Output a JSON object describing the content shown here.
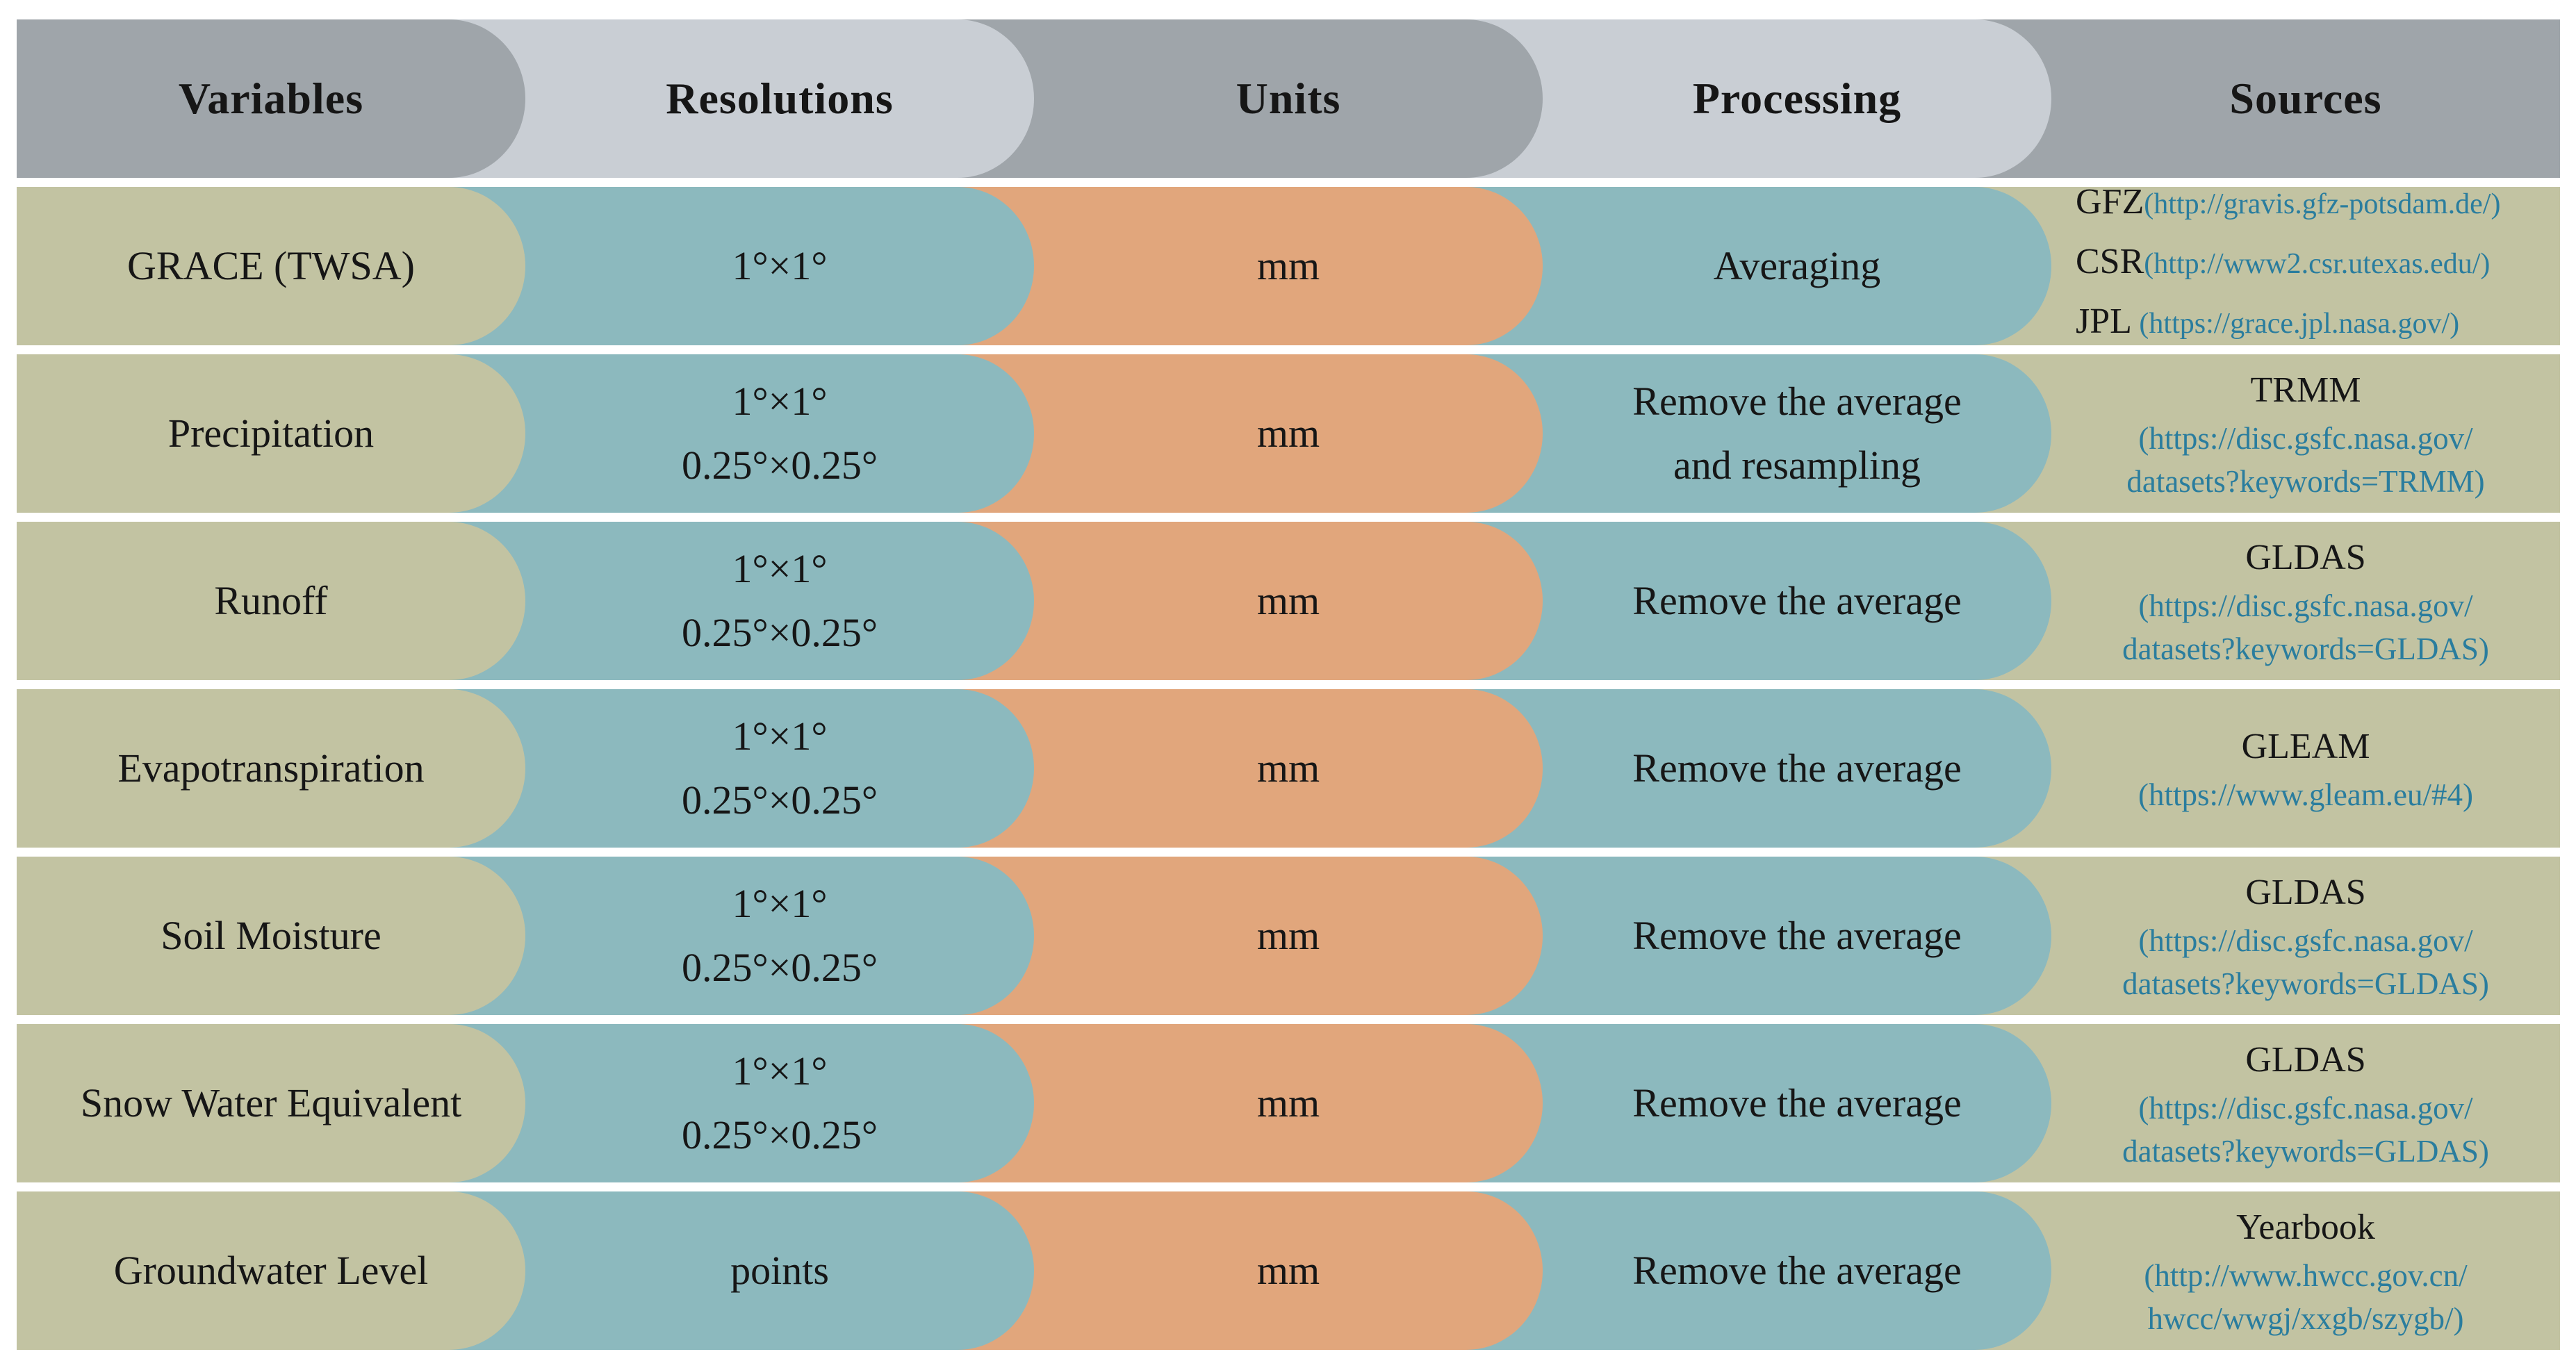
{
  "table": {
    "headers": {
      "variables": "Variables",
      "resolutions": "Resolutions",
      "units": "Units",
      "processing": "Processing",
      "sources": "Sources"
    },
    "rows": [
      {
        "variable": "GRACE (TWSA)",
        "res1": "1°×1°",
        "unit": "mm",
        "proc1": "Averaging",
        "src": {
          "l1": "GFZ",
          "u1": "(http://gravis.gfz-potsdam.de/)",
          "l2": "CSR",
          "u2": "(http://www2.csr.utexas.edu/)",
          "l3": "JPL",
          "u3": " (https://grace.jpl.nasa.gov/)"
        }
      },
      {
        "variable": "Precipitation",
        "res1": "1°×1°",
        "res2": "0.25°×0.25°",
        "unit": "mm",
        "proc1": "Remove the average",
        "proc2": "and resampling",
        "src": {
          "label": "TRMM",
          "u1": "(https://disc.gsfc.nasa.gov/",
          "u2": "datasets?keywords=TRMM)"
        }
      },
      {
        "variable": "Runoff",
        "res1": "1°×1°",
        "res2": "0.25°×0.25°",
        "unit": "mm",
        "proc1": "Remove the average",
        "src": {
          "label": "GLDAS",
          "u1": "(https://disc.gsfc.nasa.gov/",
          "u2": "datasets?keywords=GLDAS)"
        }
      },
      {
        "variable": "Evapotranspiration",
        "res1": "1°×1°",
        "res2": "0.25°×0.25°",
        "unit": "mm",
        "proc1": "Remove the average",
        "src": {
          "label": "GLEAM",
          "u1": "(https://www.gleam.eu/#4)"
        }
      },
      {
        "variable": "Soil Moisture",
        "res1": "1°×1°",
        "res2": "0.25°×0.25°",
        "unit": "mm",
        "proc1": "Remove the average",
        "src": {
          "label": "GLDAS",
          "u1": "(https://disc.gsfc.nasa.gov/",
          "u2": "datasets?keywords=GLDAS)"
        }
      },
      {
        "variable": "Snow Water Equivalent",
        "res1": "1°×1°",
        "res2": "0.25°×0.25°",
        "unit": "mm",
        "proc1": "Remove the average",
        "src": {
          "label": "GLDAS",
          "u1": "(https://disc.gsfc.nasa.gov/",
          "u2": "datasets?keywords=GLDAS)"
        }
      },
      {
        "variable": "Groundwater Level",
        "res1": "points",
        "unit": "mm",
        "proc1": "Remove the average",
        "src": {
          "label": "Yearbook",
          "u1": "(http://www.hwcc.gov.cn/",
          "u2": "hwcc/wwgj/xxgb/szygb/)"
        }
      }
    ],
    "colors": {
      "header_dark": "#9fa5aa",
      "header_light": "#c9ced4",
      "olive": "#c2c3a2",
      "teal": "#8cb9be",
      "orange": "#e1a67c",
      "link": "#2a7d9e",
      "text": "#161616",
      "background": "#ffffff"
    }
  }
}
